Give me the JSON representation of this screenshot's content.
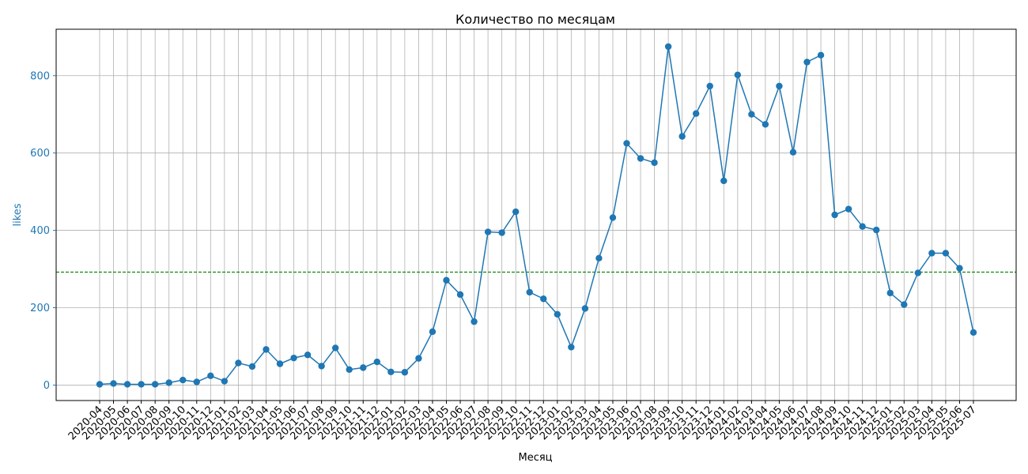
{
  "chart_data": {
    "type": "line",
    "title": "Количество по месяцам",
    "xlabel": "Месяц",
    "ylabel": "likes",
    "ylim": [
      -40,
      920
    ],
    "yticks": [
      0,
      200,
      400,
      600,
      800
    ],
    "grid": true,
    "categories": [
      "2020-04",
      "2020-05",
      "2020-06",
      "2020-07",
      "2020-08",
      "2020-09",
      "2020-10",
      "2020-11",
      "2020-12",
      "2021-01",
      "2021-02",
      "2021-03",
      "2021-04",
      "2021-05",
      "2021-06",
      "2021-07",
      "2021-08",
      "2021-09",
      "2021-10",
      "2021-11",
      "2021-12",
      "2022-01",
      "2022-02",
      "2022-03",
      "2022-04",
      "2022-05",
      "2022-06",
      "2022-07",
      "2022-08",
      "2022-09",
      "2022-10",
      "2022-11",
      "2022-12",
      "2023-01",
      "2023-02",
      "2023-03",
      "2023-04",
      "2023-05",
      "2023-06",
      "2023-07",
      "2023-08",
      "2023-09",
      "2023-10",
      "2023-11",
      "2023-12",
      "2024-01",
      "2024-02",
      "2024-03",
      "2024-04",
      "2024-05",
      "2024-06",
      "2024-07",
      "2024-08",
      "2024-09",
      "2024-10",
      "2024-11",
      "2024-12",
      "2025-01",
      "2025-02",
      "2025-03",
      "2025-04",
      "2025-05",
      "2025-06",
      "2025-07"
    ],
    "series": [
      {
        "values": [
          2,
          4,
          2,
          2,
          2,
          6,
          13,
          8,
          24,
          10,
          57,
          48,
          92,
          55,
          70,
          78,
          49,
          96,
          40,
          45,
          60,
          34,
          33,
          69,
          138,
          271,
          234,
          164,
          396,
          394,
          448,
          240,
          223,
          183,
          98,
          198,
          328,
          433,
          625,
          586,
          575,
          875,
          643,
          702,
          773,
          528,
          802,
          700,
          674,
          773,
          602,
          835,
          853,
          440,
          455,
          410,
          401,
          238,
          208,
          290,
          341,
          341,
          302,
          136
        ],
        "color": "#1f77b4"
      }
    ],
    "reference_line": {
      "value": 292,
      "color": "#008000",
      "style": "dashed"
    },
    "axis_color": "#1f77b4"
  }
}
